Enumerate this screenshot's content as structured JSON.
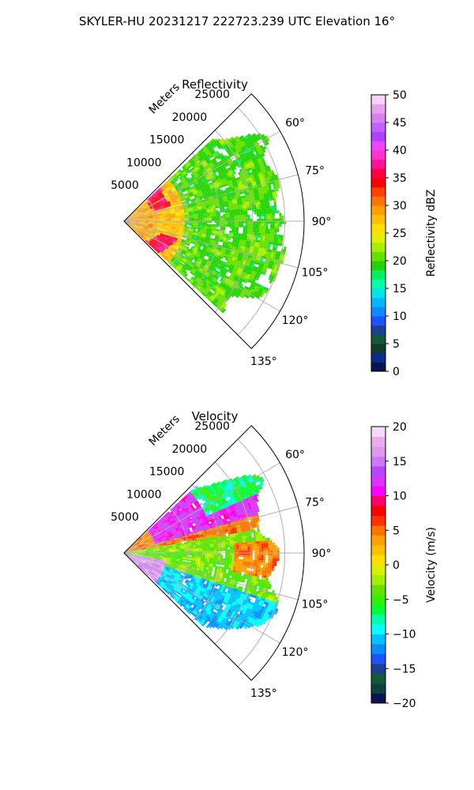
{
  "figure_title": "SKYLER-HU  20231217  222723.239 UTC Elevation 16°",
  "range_label": "Meters",
  "range_ticks": [
    "5000",
    "10000",
    "15000",
    "20000",
    "25000"
  ],
  "azimuth_ticks": [
    "60°",
    "75°",
    "90°",
    "105°",
    "120°",
    "135°"
  ],
  "chart_data": [
    {
      "type": "heatmap",
      "projection": "polar sector (PPI)",
      "title": "Reflectivity",
      "colorbar_label": "Reflectivity dBZ",
      "colorbar_ticks": [
        "0",
        "5",
        "10",
        "15",
        "20",
        "25",
        "30",
        "35",
        "40",
        "45",
        "50"
      ],
      "value_range": [
        0,
        50
      ],
      "azimuth_range_deg": [
        45,
        135
      ],
      "range_max_m": 28000,
      "range_rings_m": [
        5000,
        10000,
        15000,
        20000,
        25000
      ],
      "azimuth_gridlines_deg": [
        60,
        75,
        90,
        105,
        120,
        135
      ],
      "grid": true,
      "legend": "colorbar right",
      "description_regions": [
        {
          "azimuth_deg": [
            48,
            132
          ],
          "range_m": [
            0,
            4500
          ],
          "dbz": 28
        },
        {
          "azimuth_deg": [
            48,
            130
          ],
          "range_m": [
            4500,
            8500
          ],
          "dbz": 35
        },
        {
          "azimuth_deg": [
            55,
            125
          ],
          "range_m": [
            8500,
            22000
          ],
          "dbz": 20
        },
        {
          "azimuth_deg": [
            60,
            120
          ],
          "range_m": [
            22000,
            26500
          ],
          "dbz": 16
        }
      ]
    },
    {
      "type": "heatmap",
      "projection": "polar sector (PPI)",
      "title": "Velocity",
      "colorbar_label": "Velocity (m/s)",
      "colorbar_ticks": [
        "−20",
        "−15",
        "−10",
        "−5",
        "0",
        "5",
        "10",
        "15",
        "20"
      ],
      "value_range": [
        -20,
        20
      ],
      "azimuth_range_deg": [
        45,
        135
      ],
      "range_max_m": 28000,
      "range_rings_m": [
        5000,
        10000,
        15000,
        20000,
        25000
      ],
      "azimuth_gridlines_deg": [
        60,
        75,
        90,
        105,
        120,
        135
      ],
      "grid": true,
      "legend": "colorbar right",
      "description_regions": [
        {
          "azimuth_deg": [
            55,
            75
          ],
          "range_m": [
            3000,
            22000
          ],
          "ms": 10
        },
        {
          "azimuth_deg": [
            75,
            110
          ],
          "range_m": [
            3000,
            25000
          ],
          "ms": -5
        },
        {
          "azimuth_deg": [
            110,
            130
          ],
          "range_m": [
            2000,
            20000
          ],
          "ms": -12
        },
        {
          "azimuth_deg": [
            95,
            130
          ],
          "range_m": [
            0,
            6000
          ],
          "ms": 16
        }
      ]
    }
  ],
  "colormaps": {
    "reflectivity": [
      "#0a1450",
      "#0b2a8a",
      "#0f3d2a",
      "#145a3a",
      "#1c3f8f",
      "#1b54ff",
      "#0a8cff",
      "#00b8ff",
      "#00e6e6",
      "#00ffaa",
      "#00f060",
      "#22d400",
      "#66e000",
      "#a4f000",
      "#e2f000",
      "#ffe000",
      "#ffc000",
      "#ffa000",
      "#ff7400",
      "#ff4000",
      "#ff0000",
      "#ff0044",
      "#ff1493",
      "#ff33cc",
      "#ee44ff",
      "#b040ff",
      "#c060ff",
      "#d880f0",
      "#eaa0f0",
      "#f8d0f8"
    ],
    "velocity": [
      "#0a1450",
      "#0e4040",
      "#145a3a",
      "#1c3f8f",
      "#1b54ff",
      "#0a8cff",
      "#00c0ff",
      "#00ffff",
      "#00ffaa",
      "#00ff33",
      "#33f000",
      "#66e000",
      "#a4f000",
      "#d8f000",
      "#ffe000",
      "#ffc000",
      "#ffa000",
      "#ff7400",
      "#ff3000",
      "#ff0000",
      "#ff0066",
      "#ff00ff",
      "#dd33ff",
      "#b844ff",
      "#cc77ff",
      "#dd99ee",
      "#eeaaee",
      "#f8d8f8"
    ]
  }
}
